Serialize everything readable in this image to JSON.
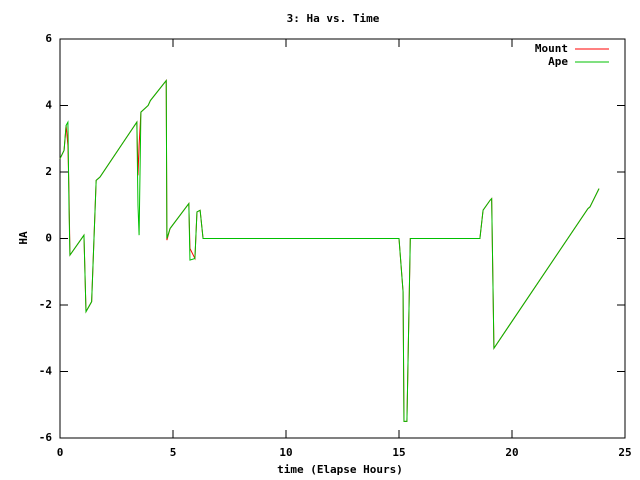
{
  "chart_data": {
    "type": "line",
    "title": "3: Ha vs. Time",
    "x_label": "time (Elapse Hours)",
    "y_label": "HA",
    "x": [
      0,
      0.18,
      0.27,
      0.35,
      0.4,
      0.44,
      1.06,
      1.15,
      1.4,
      1.6,
      1.77,
      3.4,
      3.45,
      3.5,
      3.58,
      3.9,
      4.0,
      4.7,
      4.73,
      4.87,
      5.7,
      5.75,
      5.97,
      6.06,
      6.2,
      6.33,
      15.0,
      15.18,
      15.22,
      15.35,
      15.5,
      18.58,
      18.72,
      19.03,
      19.1,
      19.2,
      23.36,
      23.45,
      23.85
    ],
    "series": [
      {
        "name": "Mount",
        "color": "#ff0000",
        "values": [
          2.4,
          2.65,
          3.4,
          2.8,
          1.3,
          -0.5,
          0.1,
          -2.2,
          -1.9,
          1.75,
          1.85,
          3.5,
          1.9,
          2.8,
          3.8,
          4.0,
          4.15,
          4.75,
          -0.05,
          0.3,
          1.05,
          -0.3,
          -0.6,
          0.8,
          0.85,
          0,
          0,
          -1.6,
          -5.5,
          -5.5,
          0,
          0,
          0.85,
          1.15,
          1.2,
          -3.3,
          0.9,
          0.95,
          1.5
        ]
      },
      {
        "name": "Ape",
        "color": "#00c000",
        "values": [
          2.4,
          2.65,
          3.4,
          3.5,
          0.85,
          -0.5,
          0.1,
          -2.2,
          -1.9,
          1.75,
          1.85,
          3.5,
          1.0,
          0.1,
          3.8,
          4.0,
          4.15,
          4.75,
          0,
          0.3,
          1.05,
          -0.65,
          -0.6,
          0.8,
          0.85,
          0,
          0,
          -1.6,
          -5.5,
          -5.5,
          0,
          0,
          0.85,
          1.15,
          1.2,
          -3.3,
          0.9,
          0.95,
          1.5
        ]
      }
    ],
    "xlim": [
      0,
      25
    ],
    "xticks": [
      0,
      5,
      10,
      15,
      20,
      25
    ],
    "ylim": [
      -6,
      6
    ],
    "yticks": [
      -6,
      -4,
      -2,
      0,
      2,
      4,
      6
    ],
    "legend": "top-right"
  }
}
